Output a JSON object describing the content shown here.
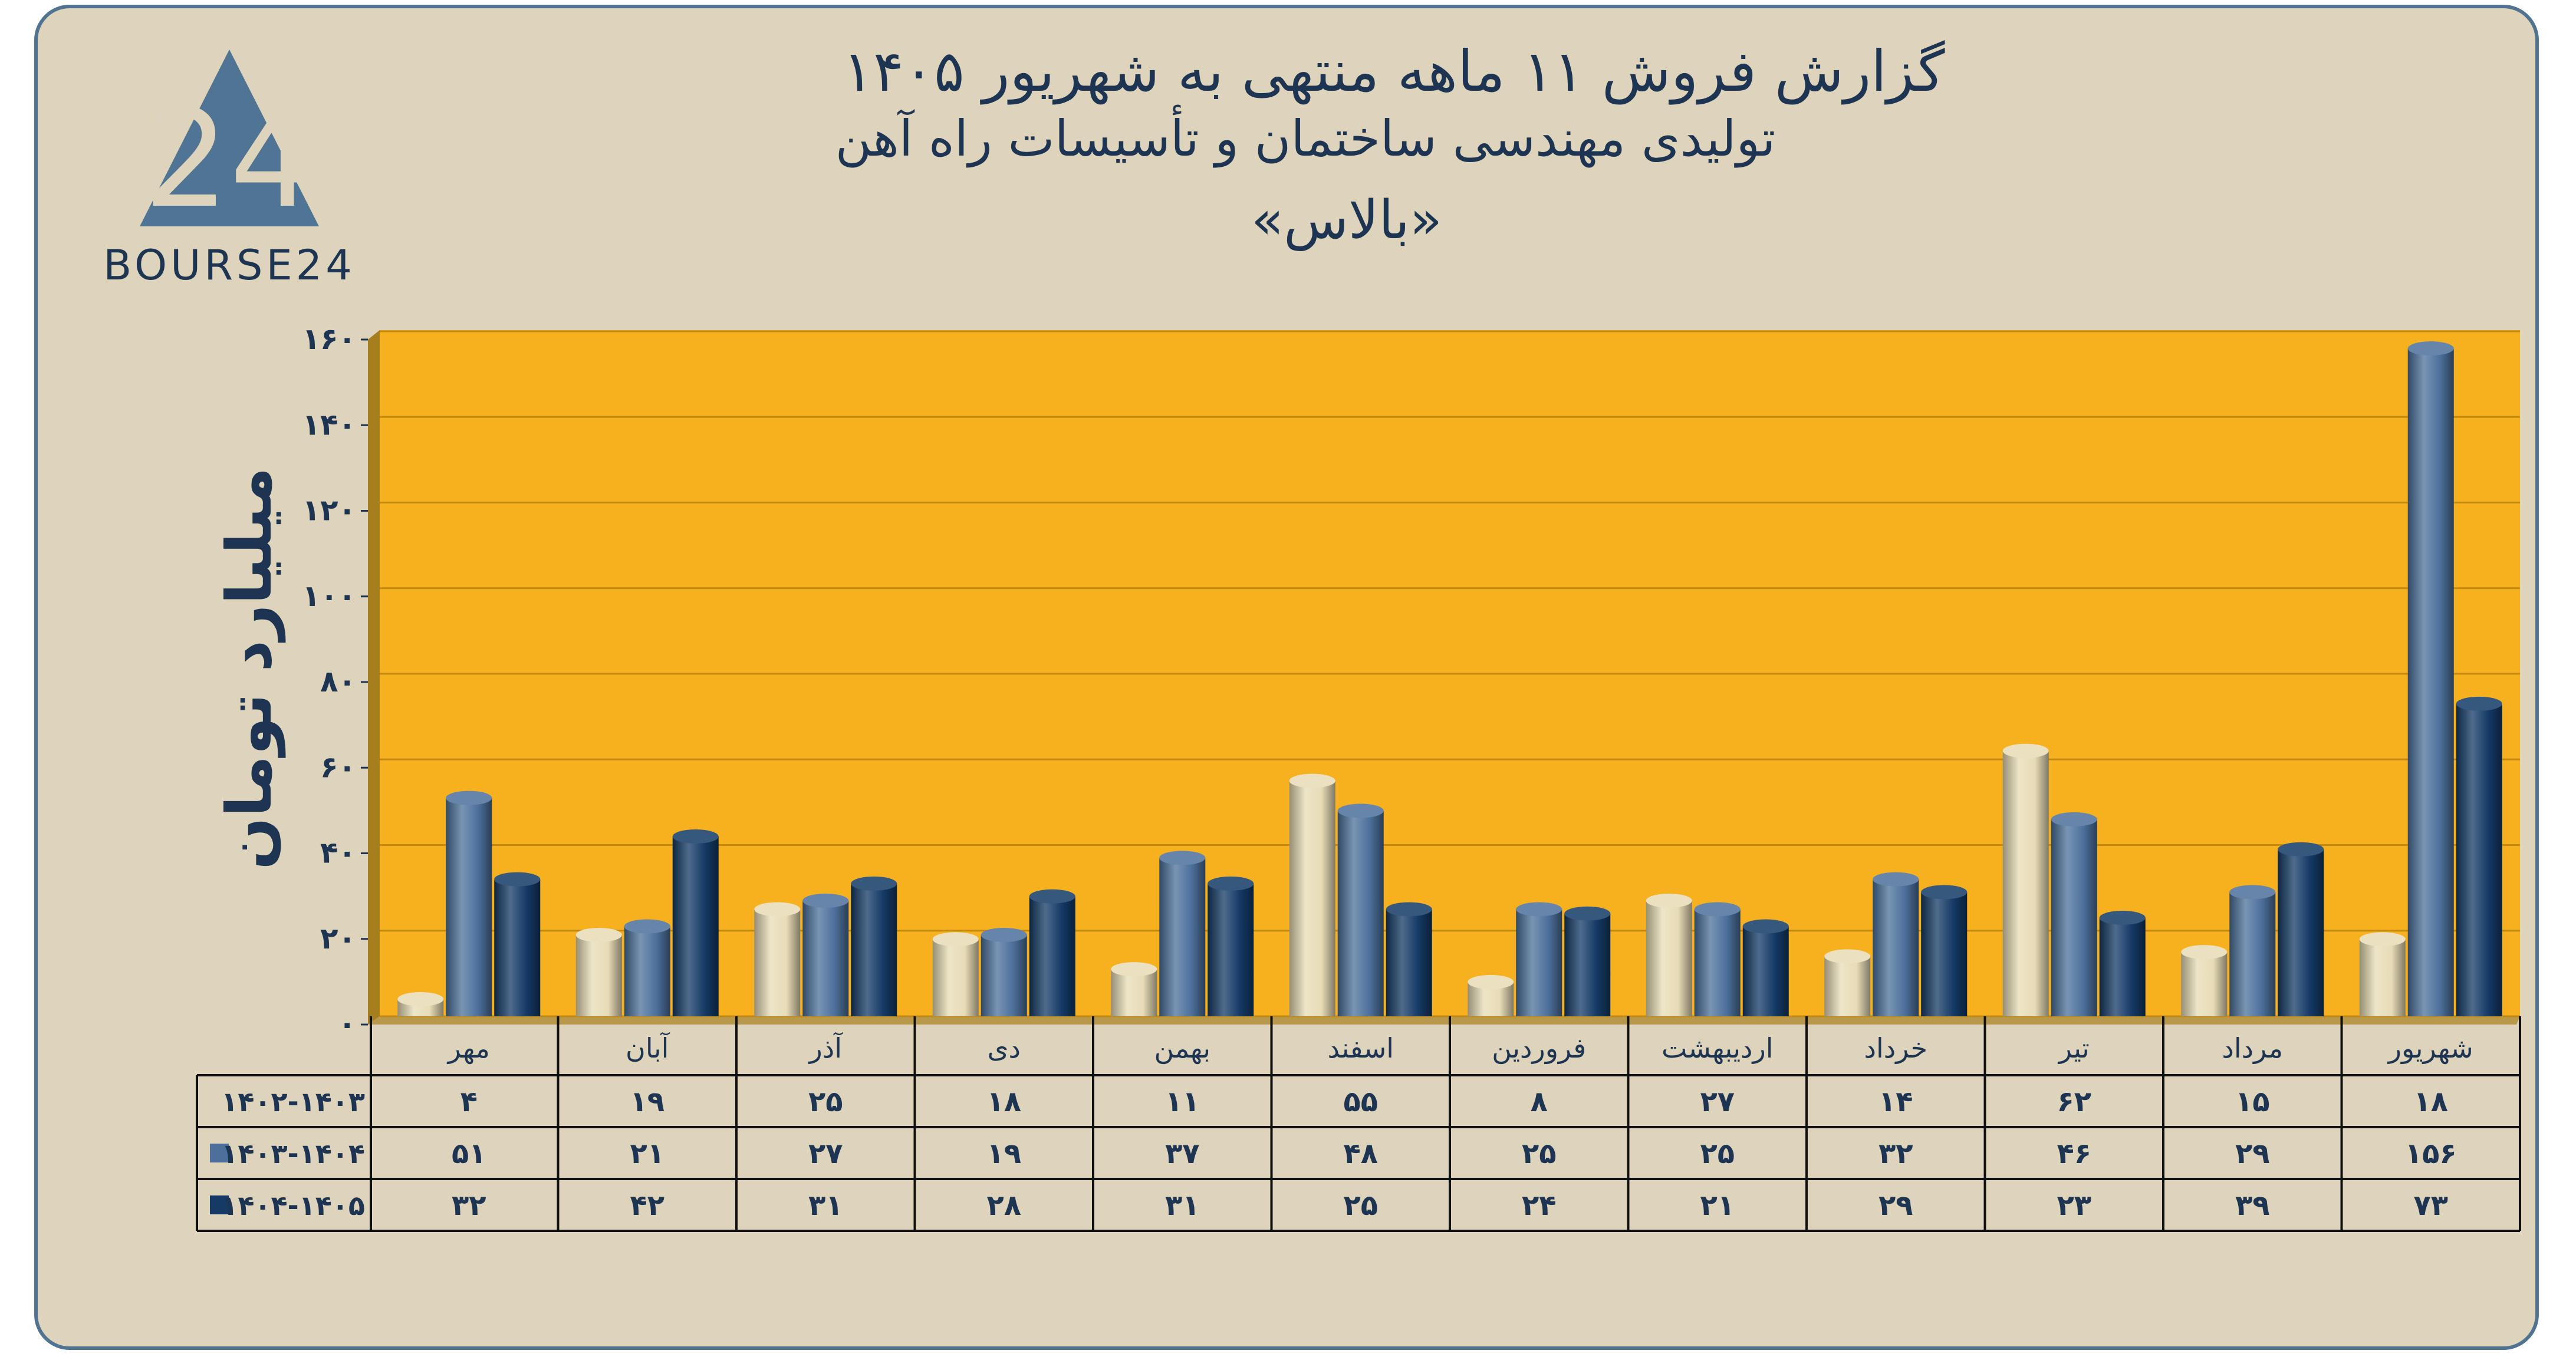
{
  "logo": {
    "text": "BOURSE24",
    "mark": "24"
  },
  "chart_data": {
    "type": "bar",
    "title": "گزارش  فروش ۱۱ ماهه منتهی به شهریور ۱۴۰۵",
    "subtitle": "تولیدی مهندسی ساختمان و تأسیسات راه آهن",
    "symbol": "«بالاس»",
    "ylabel": "میلیارد تومان",
    "xlabel": "",
    "ylim": [
      0,
      160
    ],
    "y_ticks": [
      0,
      20,
      40,
      60,
      80,
      100,
      120,
      140,
      160
    ],
    "y_tick_labels": [
      "۰",
      "۲۰",
      "۴۰",
      "۶۰",
      "۸۰",
      "۱۰۰",
      "۱۲۰",
      "۱۴۰",
      "۱۶۰"
    ],
    "grid": true,
    "legend": "table-left",
    "categories": [
      "مهر",
      "آبان",
      "آذر",
      "دی",
      "بهمن",
      "اسفند",
      "فروردین",
      "اردیبهشت",
      "خرداد",
      "تیر",
      "مرداد",
      "شهریور"
    ],
    "series": [
      {
        "name": "۱۴۰۲-۱۴۰۳",
        "color": "#e7dcb6",
        "values": [
          4,
          19,
          25,
          18,
          11,
          55,
          8,
          27,
          14,
          62,
          15,
          18
        ],
        "value_labels": [
          "۴",
          "۱۹",
          "۲۵",
          "۱۸",
          "۱۱",
          "۵۵",
          "۸",
          "۲۷",
          "۱۴",
          "۶۲",
          "۱۵",
          "۱۸"
        ]
      },
      {
        "name": "۱۴۰۳-۱۴۰۴",
        "color": "#4c709b",
        "values": [
          51,
          21,
          27,
          19,
          37,
          48,
          25,
          25,
          32,
          46,
          29,
          156
        ],
        "value_labels": [
          "۵۱",
          "۲۱",
          "۲۷",
          "۱۹",
          "۳۷",
          "۴۸",
          "۲۵",
          "۲۵",
          "۳۲",
          "۴۶",
          "۲۹",
          "۱۵۶"
        ]
      },
      {
        "name": "۱۴۰۴-۱۴۰۵",
        "color": "#143a66",
        "values": [
          32,
          42,
          31,
          28,
          31,
          25,
          24,
          21,
          29,
          23,
          39,
          73
        ],
        "value_labels": [
          "۳۲",
          "۴۲",
          "۳۱",
          "۲۸",
          "۳۱",
          "۲۵",
          "۲۴",
          "۲۱",
          "۲۹",
          "۲۳",
          "۳۹",
          "۷۳"
        ]
      }
    ],
    "colors": {
      "plot_bg": "#f8b11e",
      "wall": "#a67e1e",
      "card_bg": "#ded4bb",
      "border": "#4f7391",
      "text": "#1d3452"
    }
  }
}
